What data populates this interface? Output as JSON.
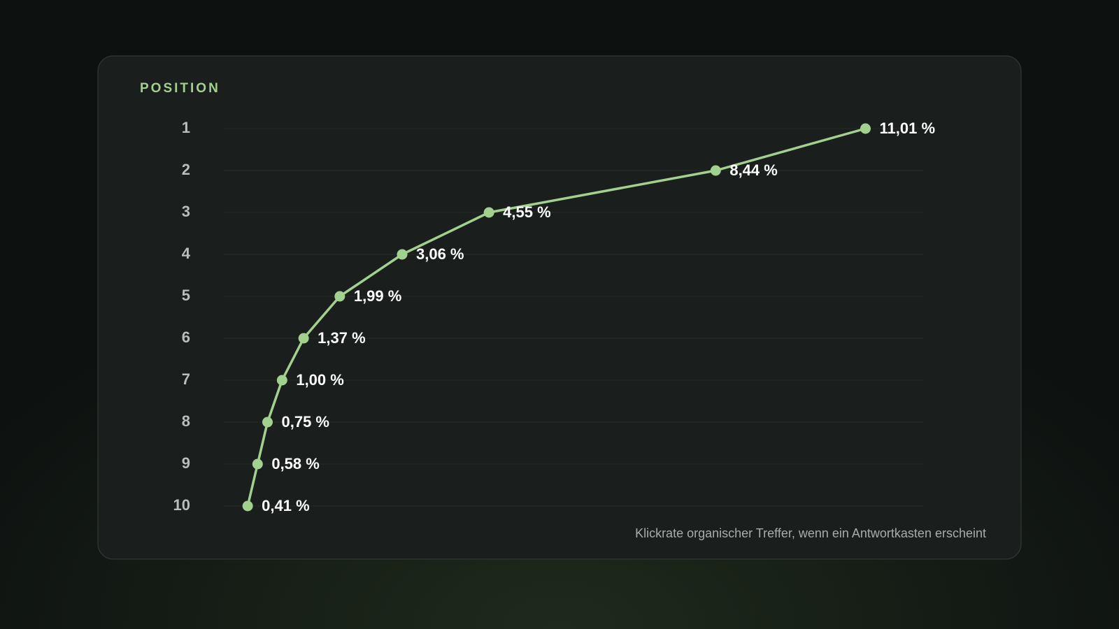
{
  "chart_data": {
    "type": "line",
    "orientation": "horizontal",
    "y_label": "POSITION",
    "annotation": "Klickrate organischer Treffer, wenn ein Antwortkasten erscheint",
    "categories": [
      "1",
      "2",
      "3",
      "4",
      "5",
      "6",
      "7",
      "8",
      "9",
      "10"
    ],
    "values": [
      11.01,
      8.44,
      4.55,
      3.06,
      1.99,
      1.37,
      1.0,
      0.75,
      0.58,
      0.41
    ],
    "value_labels": [
      "11,01 %",
      "8,44 %",
      "4,55 %",
      "3,06 %",
      "1,99 %",
      "1,37 %",
      "1,00 %",
      "0,75 %",
      "0,58 %",
      "0,41 %"
    ],
    "color": "#a2d18f",
    "xlim": [
      0,
      12
    ],
    "grid": true
  }
}
